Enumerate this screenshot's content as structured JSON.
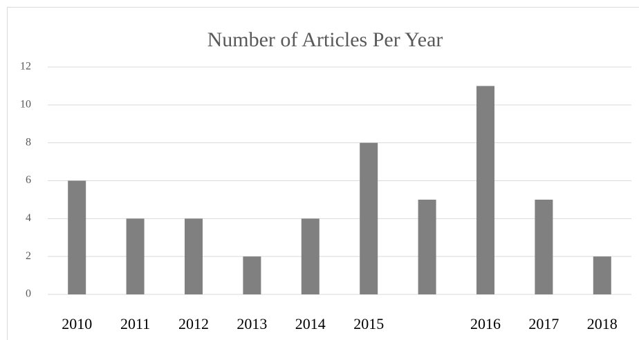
{
  "chart_data": {
    "type": "bar",
    "title": "Number of Articles Per Year",
    "categories": [
      "2010",
      "2011",
      "2012",
      "2013",
      "2014",
      "2015",
      null,
      "2016",
      "2017",
      "2018"
    ],
    "values": [
      6,
      4,
      4,
      2,
      4,
      8,
      5,
      11,
      5,
      2
    ],
    "color": "#808080",
    "ylim": [
      0,
      12
    ],
    "yticks": [
      0,
      2,
      4,
      6,
      8,
      10,
      12
    ],
    "grid": true
  }
}
